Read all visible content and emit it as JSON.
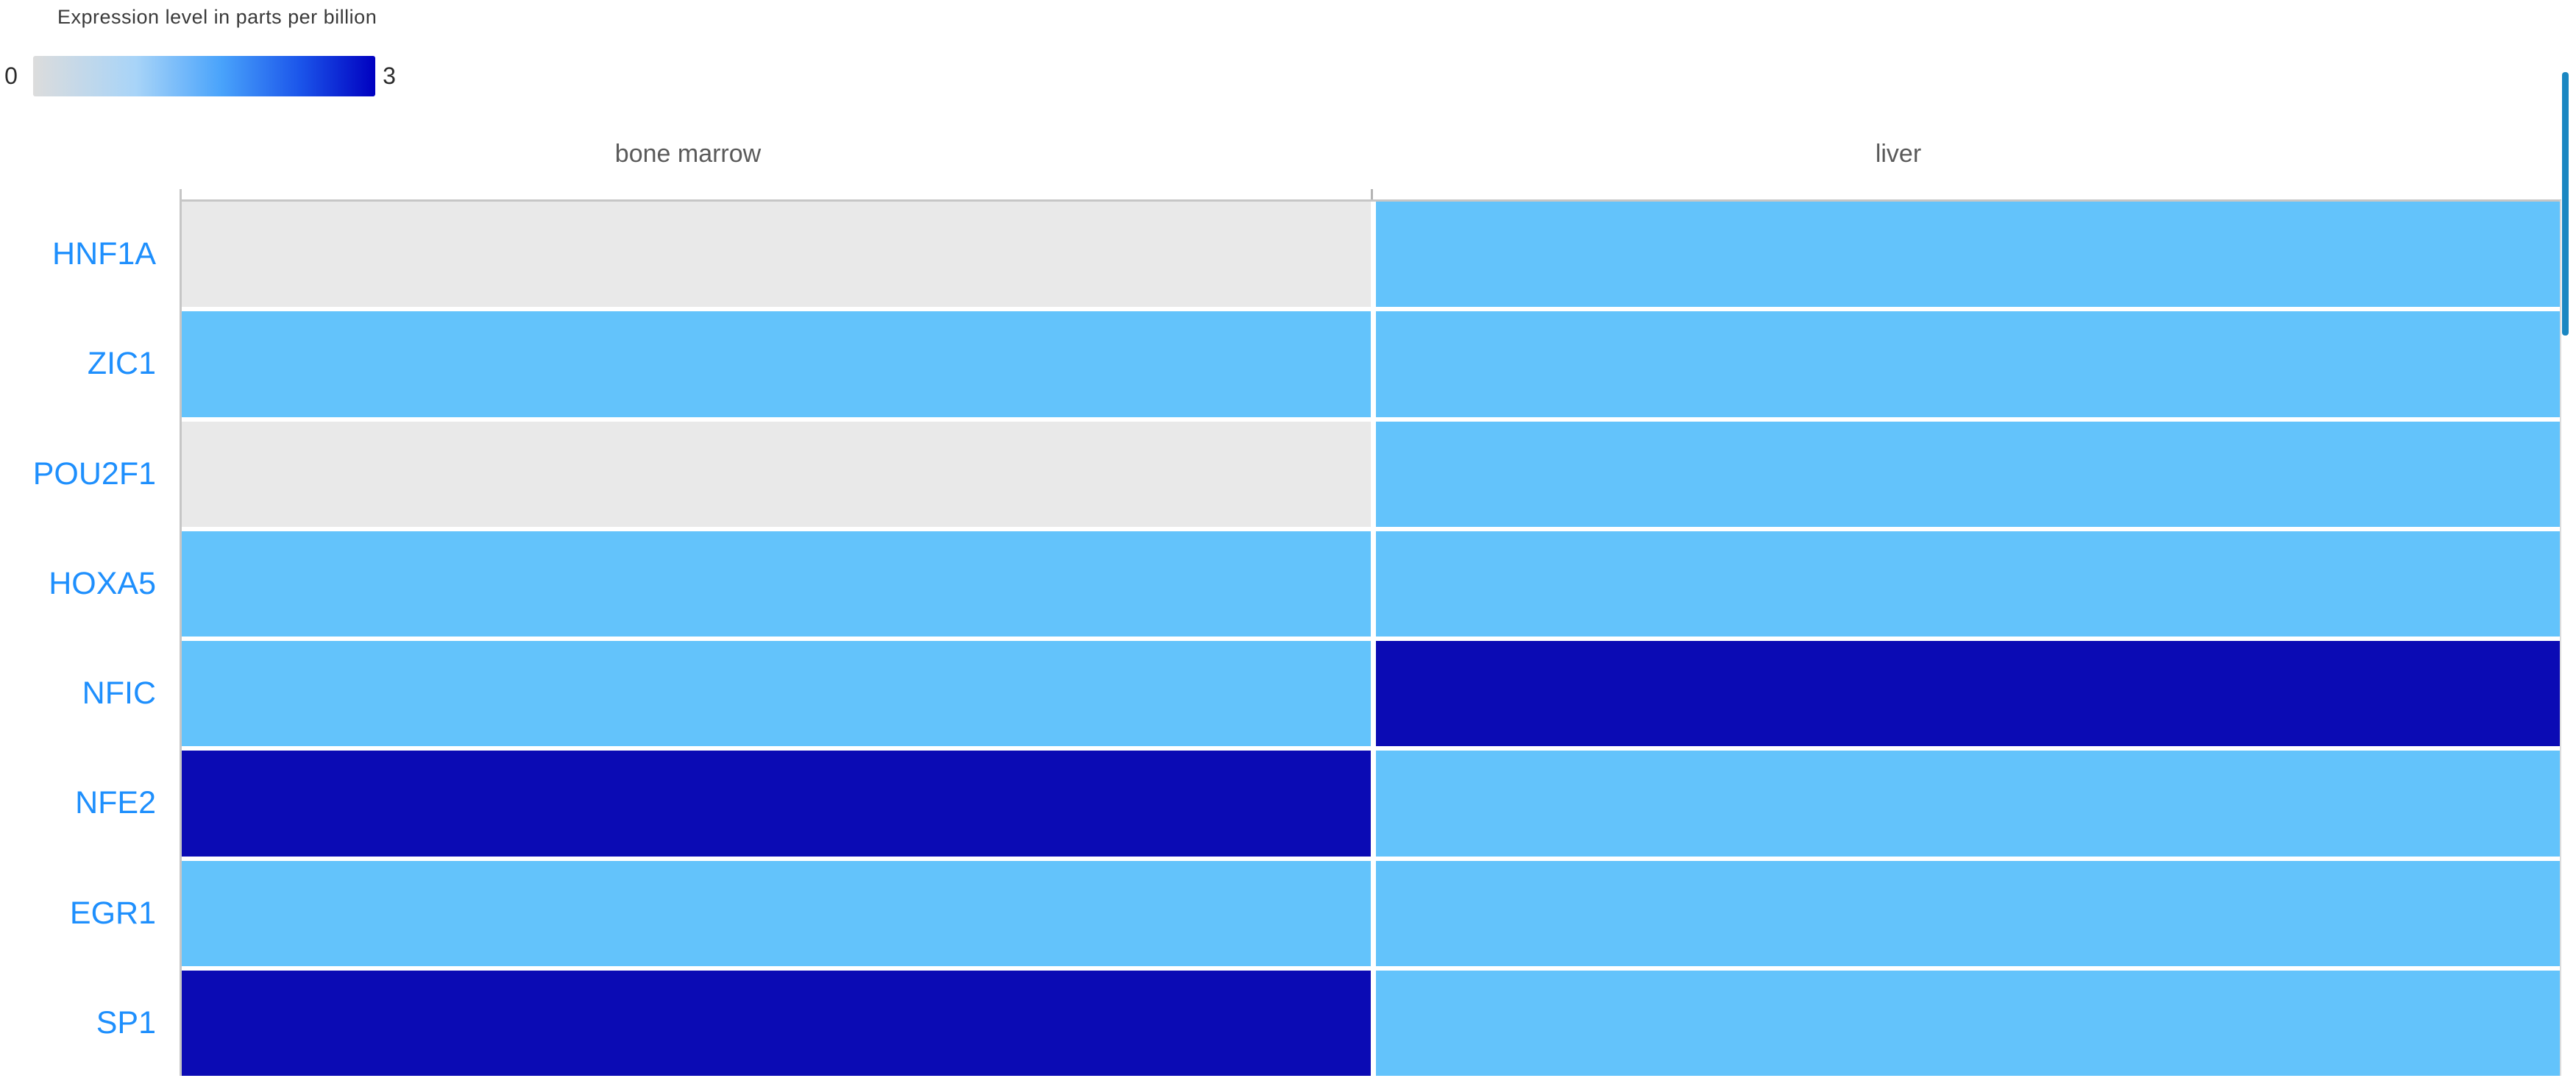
{
  "legend": {
    "title": "Expression level in parts per billion",
    "min_label": "0",
    "max_label": "3"
  },
  "chart_data": {
    "type": "heatmap",
    "title": "Expression level in parts per billion",
    "unit": "parts per billion",
    "columns": [
      "bone marrow",
      "liver"
    ],
    "rows": [
      "HNF1A",
      "ZIC1",
      "POU2F1",
      "HOXA5",
      "NFIC",
      "NFE2",
      "EGR1",
      "SP1"
    ],
    "values": [
      [
        0,
        1
      ],
      [
        1,
        1
      ],
      [
        0,
        1
      ],
      [
        1,
        1
      ],
      [
        1,
        3
      ],
      [
        3,
        1
      ],
      [
        1,
        1
      ],
      [
        3,
        1
      ]
    ],
    "scale": {
      "min": 0,
      "max": 3
    },
    "palette": {
      "0": "#e9e9e9",
      "1": "#63c3fb",
      "3": "#0b0bb4"
    },
    "legend_position": "top-left",
    "grid": "off"
  },
  "colors": {
    "cell_zero": "#e9e9e9",
    "cell_low": "#63c3fb",
    "cell_high": "#0b0bb4",
    "row_label_text": "#1e8ffd",
    "column_header_text": "#5a5a5a",
    "legend_text": "#2b2b2b",
    "axis_border": "#c6c6c6",
    "scrollbar_thumb": "#1a87c2",
    "gradient_stops": [
      "#dcdcdc 0%",
      "#a8d4f8 30%",
      "#49a3fb 55%",
      "#1b55ea 78%",
      "#0000c0 100%"
    ]
  }
}
